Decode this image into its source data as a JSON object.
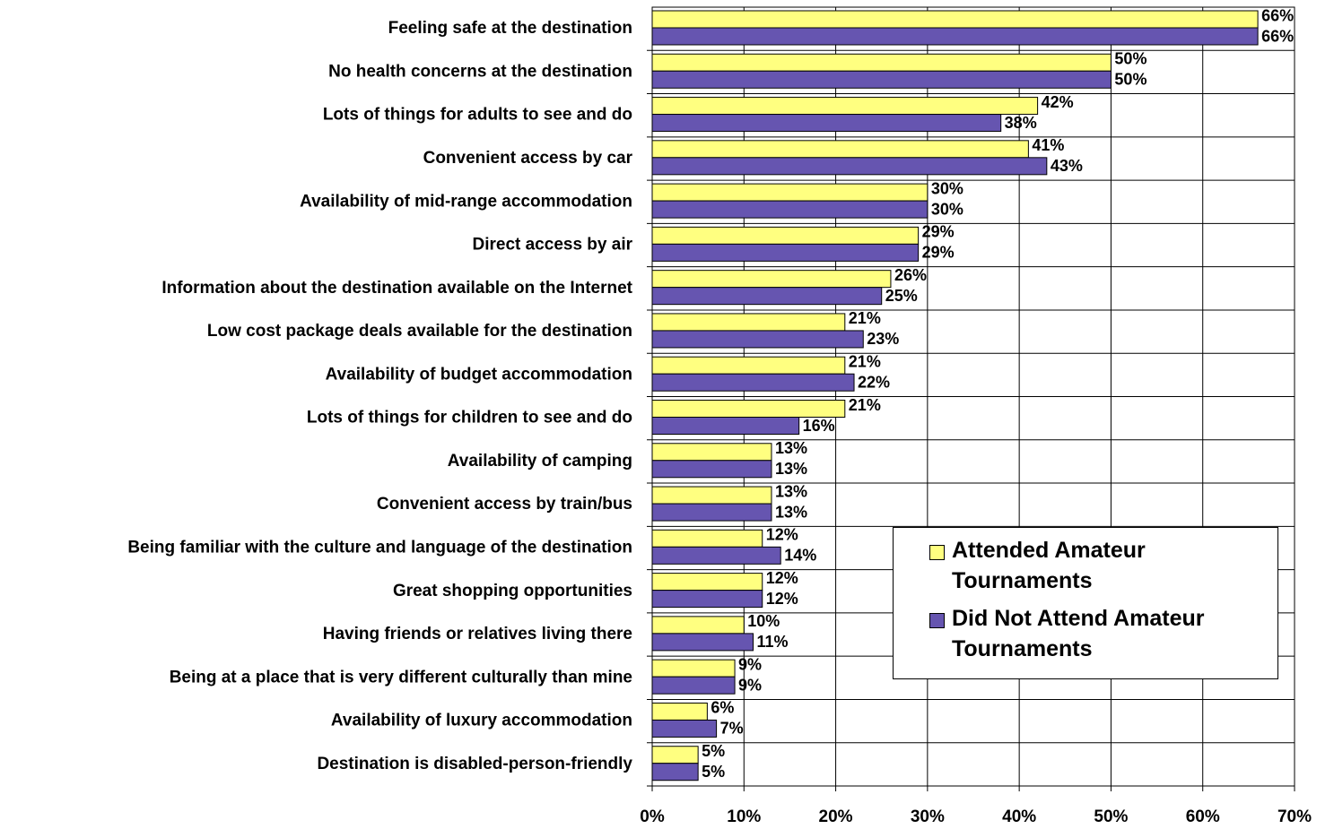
{
  "chart_data": {
    "type": "hbar",
    "categories": [
      "Feeling safe at the destination",
      "No health concerns at the destination",
      "Lots of things for adults to see and do",
      "Convenient access by car",
      "Availability of mid-range accommodation",
      "Direct access by air",
      "Information about the destination available on the Internet",
      "Low cost package deals available for the destination",
      "Availability of budget accommodation",
      "Lots of things for children to see and do",
      "Availability of camping",
      "Convenient access by train/bus",
      "Being familiar with the culture and language of the destination",
      "Great shopping opportunities",
      "Having friends or relatives living there",
      "Being at a place that is very different culturally than mine",
      "Availability of luxury accommodation",
      "Destination is disabled-person-friendly"
    ],
    "series": [
      {
        "name": "Attended Amateur Tournaments",
        "color": "#ffff80",
        "values": [
          66,
          50,
          42,
          41,
          30,
          29,
          26,
          21,
          21,
          21,
          13,
          13,
          12,
          12,
          10,
          9,
          6,
          5
        ],
        "value_labels": [
          "66%",
          "50%",
          "42%",
          "41%",
          "30%",
          "29%",
          "26%",
          "21%",
          "21%",
          "21%",
          "13%",
          "13%",
          "12%",
          "12%",
          "10%",
          "9%",
          "6%",
          "5%"
        ]
      },
      {
        "name": "Did Not Attend Amateur Tournaments",
        "color": "#6655b0",
        "values": [
          66,
          50,
          38,
          43,
          30,
          29,
          25,
          23,
          22,
          16,
          13,
          13,
          14,
          12,
          11,
          9,
          7,
          5
        ],
        "value_labels": [
          "66%",
          "50%",
          "38%",
          "43%",
          "30%",
          "29%",
          "25%",
          "23%",
          "22%",
          "16%",
          "13%",
          "13%",
          "14%",
          "12%",
          "11%",
          "9%",
          "7%",
          "5%"
        ]
      }
    ],
    "xlim": [
      0,
      70
    ],
    "xticks": [
      {
        "value": 0,
        "label": "0%"
      },
      {
        "value": 10,
        "label": "10%"
      },
      {
        "value": 20,
        "label": "20%"
      },
      {
        "value": 30,
        "label": "30%"
      },
      {
        "value": 40,
        "label": "40%"
      },
      {
        "value": 50,
        "label": "50%"
      },
      {
        "value": 60,
        "label": "60%"
      },
      {
        "value": 70,
        "label": "70%"
      }
    ],
    "grid": true,
    "legend_position": "lower right"
  }
}
